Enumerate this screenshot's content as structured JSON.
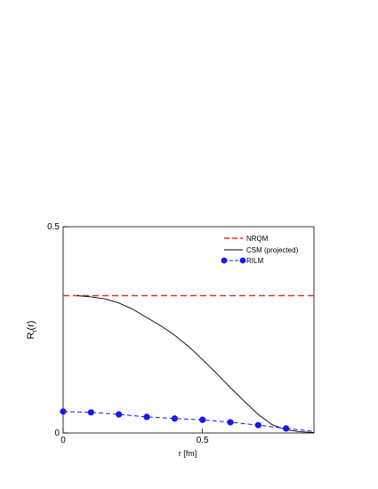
{
  "chart_data": {
    "type": "line",
    "xlabel": "r   [fm]",
    "ylabel_main": "R",
    "ylabel_sub": "t",
    "ylabel_tail": "(r)",
    "xlim": [
      0,
      0.9
    ],
    "ylim": [
      0,
      0.5
    ],
    "x_tick_values": [
      0,
      0.5
    ],
    "x_tick_labels": [
      "0",
      "0.5"
    ],
    "y_tick_values": [
      0,
      0.5
    ],
    "y_tick_labels": [
      "0",
      "0.5"
    ],
    "grid": false,
    "legend_position": "top-right",
    "series": [
      {
        "name": "NRQM",
        "style": "dashed",
        "color": "#e8302a",
        "x": [
          0,
          0.9
        ],
        "y": [
          0.333,
          0.333
        ]
      },
      {
        "name": "CSM (projected)",
        "style": "solid",
        "color": "#000000",
        "x": [
          0.05,
          0.1,
          0.15,
          0.2,
          0.25,
          0.3,
          0.35,
          0.4,
          0.45,
          0.5,
          0.55,
          0.6,
          0.65,
          0.7,
          0.75,
          0.8,
          0.85,
          0.9
        ],
        "y": [
          0.333,
          0.33,
          0.325,
          0.315,
          0.3,
          0.28,
          0.26,
          0.237,
          0.21,
          0.178,
          0.145,
          0.11,
          0.077,
          0.045,
          0.02,
          0.008,
          0.003,
          0.001
        ]
      },
      {
        "name": "RILM",
        "style": "dashed-markers",
        "color": "#1818ee",
        "x": [
          0,
          0.1,
          0.2,
          0.3,
          0.4,
          0.5,
          0.6,
          0.7,
          0.8
        ],
        "y": [
          0.052,
          0.05,
          0.045,
          0.039,
          0.035,
          0.032,
          0.026,
          0.019,
          0.011
        ],
        "x_tail": [
          0.8,
          0.9
        ],
        "y_tail": [
          0.011,
          0.004
        ]
      }
    ]
  }
}
